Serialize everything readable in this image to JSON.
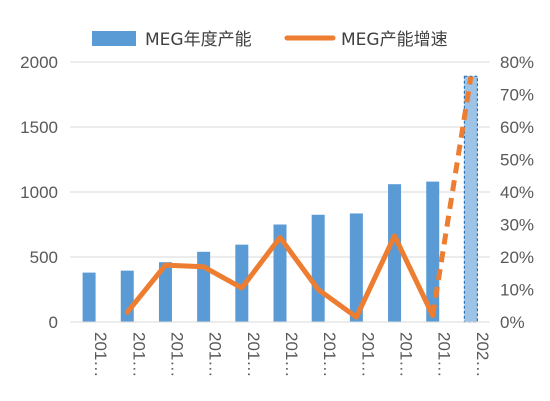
{
  "chart_data": {
    "type": "bar",
    "title": "",
    "categories": [
      "201…",
      "201…",
      "201…",
      "201…",
      "201…",
      "201…",
      "201…",
      "201…",
      "201…",
      "201…",
      "202…"
    ],
    "series": [
      {
        "name": "MEG年度产能",
        "kind": "bar",
        "axis": "left",
        "color": "#5b9bd5",
        "values": [
          380,
          395,
          460,
          540,
          595,
          750,
          825,
          835,
          1060,
          1080,
          1890
        ],
        "highlight_last_point_dashed": true
      },
      {
        "name": "MEG产能增速",
        "kind": "line",
        "axis": "right",
        "color": "#ed7d31",
        "values": [
          null,
          0.03,
          0.175,
          0.17,
          0.105,
          0.26,
          0.1,
          0.015,
          0.265,
          0.02,
          0.755
        ],
        "last_segment_dashed": true
      }
    ],
    "y_left": {
      "min": 0,
      "max": 2000,
      "ticks": [
        0,
        500,
        1000,
        1500,
        2000
      ],
      "tick_labels": [
        "0",
        "500",
        "1000",
        "1500",
        "2000"
      ]
    },
    "y_right": {
      "min": 0,
      "max": 0.8,
      "ticks": [
        0,
        0.1,
        0.2,
        0.3,
        0.4,
        0.5,
        0.6,
        0.7,
        0.8
      ],
      "tick_labels": [
        "0%",
        "10%",
        "20%",
        "30%",
        "40%",
        "50%",
        "60%",
        "70%",
        "80%"
      ]
    },
    "grid": true,
    "legend_position": "top",
    "xlabel": "",
    "ylabel": ""
  }
}
